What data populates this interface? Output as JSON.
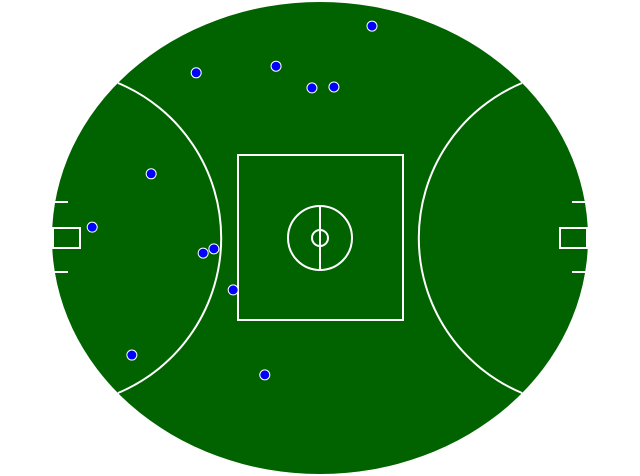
{
  "chart_data": {
    "type": "scatter",
    "x": [
      59.7,
      26.9,
      41.8,
      48.5,
      52.6,
      18.5,
      7.5,
      28.2,
      30.2,
      33.8,
      14.9,
      39.7
    ],
    "y": [
      94.9,
      85.0,
      86.4,
      81.8,
      82.0,
      63.6,
      52.3,
      46.8,
      47.7,
      39.0,
      25.2,
      21.0
    ],
    "xlim": [
      0,
      100
    ],
    "ylim": [
      0,
      100
    ],
    "color": "#0000ff"
  }
}
